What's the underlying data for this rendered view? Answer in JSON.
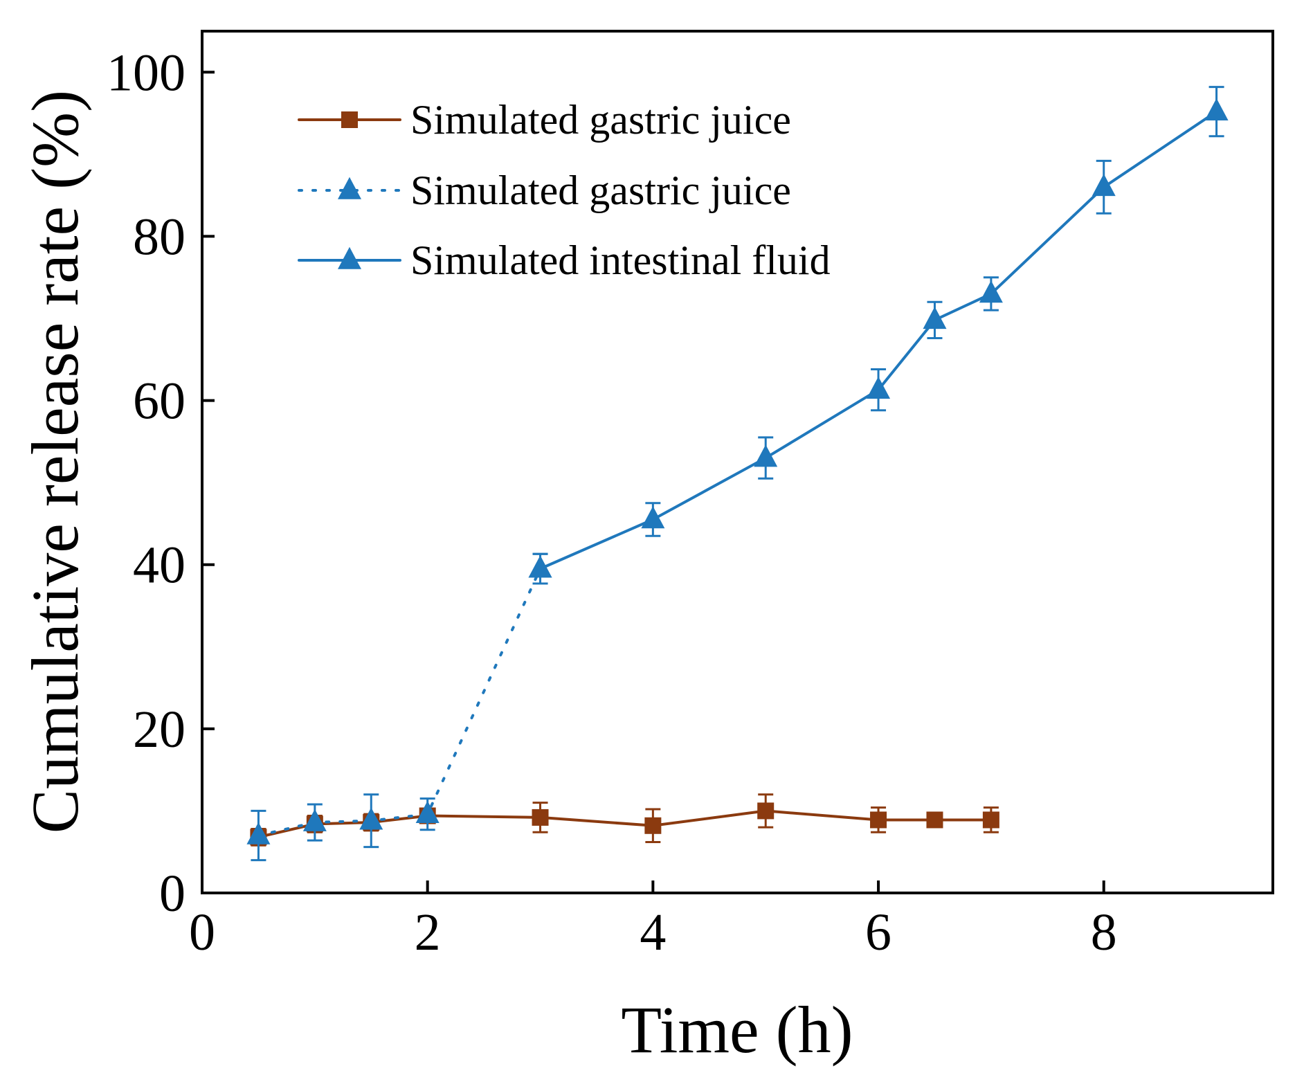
{
  "chart_data": {
    "type": "line",
    "title": "",
    "xlabel": "Time (h)",
    "ylabel": "Cumulative release rate (%)",
    "xlim": [
      0,
      9.5
    ],
    "ylim": [
      0,
      105
    ],
    "xticks": [
      0,
      2,
      4,
      6,
      8
    ],
    "yticks": [
      0,
      20,
      40,
      60,
      80,
      100
    ],
    "xtick_labels": [
      "0",
      "2",
      "4",
      "6",
      "8"
    ],
    "ytick_labels": [
      "0",
      "20",
      "40",
      "60",
      "80",
      "100"
    ],
    "grid": false,
    "legend_position": "top-left",
    "series": [
      {
        "name": "Simulated gastric juice",
        "color": "#8B3A0F",
        "marker": "square",
        "line_style": "solid",
        "x": [
          0.5,
          1,
          1.5,
          2,
          3,
          4,
          5,
          6,
          6.5,
          7
        ],
        "y": [
          6.8,
          8.4,
          8.6,
          9.4,
          9.2,
          8.2,
          10.0,
          8.9,
          8.9,
          8.9
        ],
        "error": [
          1.0,
          1.0,
          1.0,
          0.8,
          1.8,
          2.0,
          2.0,
          1.5,
          0.5,
          1.5
        ]
      },
      {
        "name": "Simulated gastric juice",
        "color": "#1F78BC",
        "marker": "triangle",
        "line_style": "dotted",
        "x": [
          0.5,
          1,
          1.5,
          2,
          3
        ],
        "y": [
          7.0,
          8.6,
          8.8,
          9.6,
          39.5
        ],
        "error": [
          3.0,
          2.2,
          3.2,
          1.9,
          1.8
        ]
      },
      {
        "name": "Simulated intestinal fluid",
        "color": "#1F78BC",
        "marker": "triangle",
        "line_style": "solid",
        "x": [
          3,
          4,
          5,
          6,
          6.5,
          7,
          8,
          9
        ],
        "y": [
          39.5,
          45.5,
          53.0,
          61.3,
          69.8,
          73.0,
          86.0,
          95.2
        ],
        "error": [
          1.8,
          2.0,
          2.5,
          2.5,
          2.2,
          2.0,
          3.2,
          3.0
        ]
      }
    ]
  }
}
